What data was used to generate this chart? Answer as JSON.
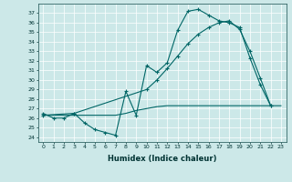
{
  "xlabel": "Humidex (Indice chaleur)",
  "background_color": "#cce8e8",
  "grid_color": "#ffffff",
  "line_color": "#006666",
  "xlim": [
    -0.5,
    23.5
  ],
  "ylim": [
    23.5,
    38.0
  ],
  "yticks": [
    24,
    25,
    26,
    27,
    28,
    29,
    30,
    31,
    32,
    33,
    34,
    35,
    36,
    37
  ],
  "xticks": [
    0,
    1,
    2,
    3,
    4,
    5,
    6,
    7,
    8,
    9,
    10,
    11,
    12,
    13,
    14,
    15,
    16,
    17,
    18,
    19,
    20,
    21,
    22,
    23
  ],
  "series1_x": [
    0,
    1,
    2,
    3,
    4,
    5,
    6,
    7,
    8,
    9,
    10,
    11,
    12,
    13,
    14,
    15,
    16,
    17,
    18,
    19,
    20,
    21,
    22
  ],
  "series1_y": [
    26.5,
    26.0,
    26.0,
    26.5,
    25.5,
    24.8,
    24.5,
    24.2,
    28.8,
    26.3,
    31.5,
    30.8,
    31.8,
    35.2,
    37.2,
    37.4,
    36.8,
    36.2,
    36.0,
    35.5,
    32.3,
    29.5,
    27.3
  ],
  "series2_x": [
    0,
    1,
    2,
    3,
    4,
    5,
    6,
    7,
    8,
    9,
    10,
    11,
    12,
    13,
    14,
    15,
    16,
    17,
    18,
    19,
    20,
    21,
    22,
    23
  ],
  "series2_y": [
    26.3,
    26.3,
    26.3,
    26.3,
    26.3,
    26.3,
    26.3,
    26.3,
    26.5,
    26.8,
    27.0,
    27.2,
    27.3,
    27.3,
    27.3,
    27.3,
    27.3,
    27.3,
    27.3,
    27.3,
    27.3,
    27.3,
    27.3,
    27.3
  ],
  "series3_x": [
    0,
    3,
    10,
    11,
    12,
    13,
    14,
    15,
    16,
    17,
    18,
    19,
    20,
    21,
    22
  ],
  "series3_y": [
    26.3,
    26.5,
    29.0,
    30.0,
    31.2,
    32.5,
    33.8,
    34.8,
    35.5,
    36.0,
    36.2,
    35.3,
    33.0,
    30.2,
    27.3
  ]
}
